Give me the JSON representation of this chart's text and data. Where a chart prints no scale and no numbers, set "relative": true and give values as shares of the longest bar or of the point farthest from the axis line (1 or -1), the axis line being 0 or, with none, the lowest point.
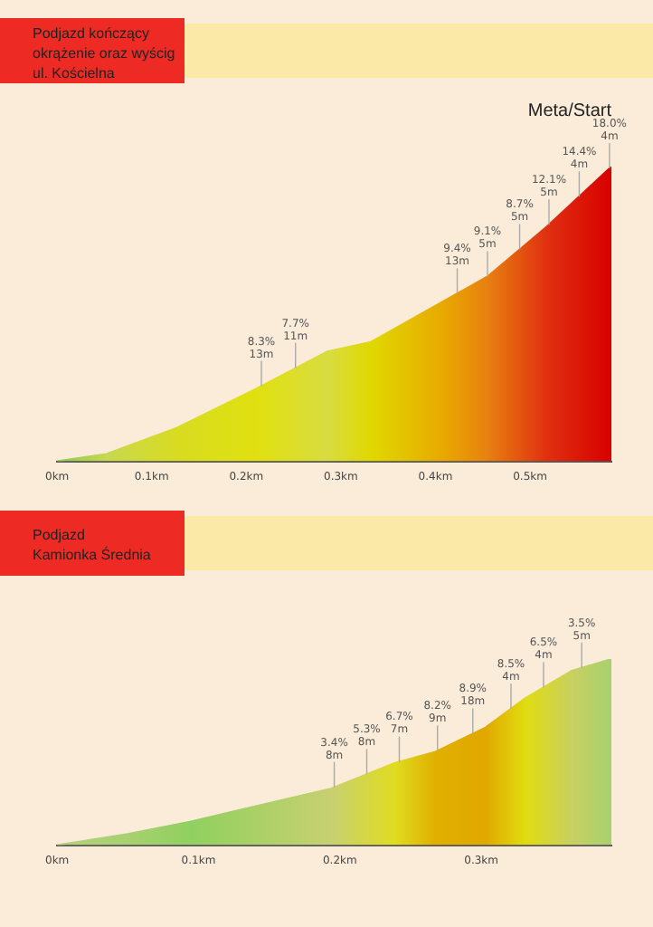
{
  "chart_data": [
    {
      "type": "area",
      "title": "Podjazd kończący\nokrążenie oraz wyścig\nul. Kościelna",
      "relative": true,
      "tick_labels": "x",
      "x": [
        0,
        0.052,
        0.127,
        0.211,
        0.286,
        0.332,
        0.409,
        0.455,
        0.518,
        0.586
      ],
      "xlim": [
        0,
        0.586
      ],
      "xticks": [
        {
          "value": 0,
          "label": "0km"
        },
        {
          "value": 0.1,
          "label": "0.1km"
        },
        {
          "value": 0.2,
          "label": "0.2km"
        },
        {
          "value": 0.3,
          "label": "0.3km"
        },
        {
          "value": 0.4,
          "label": "0.4km"
        },
        {
          "value": 0.5,
          "label": "0.5km"
        }
      ],
      "series": [
        {
          "values": [
            0,
            0.025,
            0.114,
            0.247,
            0.373,
            0.405,
            0.544,
            0.627,
            0.797,
            1.0
          ],
          "colors": [
            "#8cc850",
            "#c8d850",
            "#d8dc20",
            "#e0e010",
            "#d8dc40",
            "#e0d800",
            "#e8a800",
            "#e88010",
            "#e03010",
            "#d80000"
          ]
        }
      ],
      "annotations": [
        {
          "text": "8.3%\n13m",
          "x": 0.216,
          "y": 0.255
        },
        {
          "text": "7.7%\n11m",
          "x": 0.252,
          "y": 0.316
        },
        {
          "text": "9.4%\n13m",
          "x": 0.423,
          "y": 0.569
        },
        {
          "text": "9.1%\n5m",
          "x": 0.455,
          "y": 0.627
        },
        {
          "text": "8.7%\n5m",
          "x": 0.489,
          "y": 0.719
        },
        {
          "text": "12.1%\n5m",
          "x": 0.52,
          "y": 0.803
        },
        {
          "text": "14.4%\n4m",
          "x": 0.552,
          "y": 0.898
        },
        {
          "text": "18.0%\n4m",
          "x": 0.584,
          "y": 0.994
        },
        "Meta/Start"
      ]
    },
    {
      "type": "area",
      "title": "Podjazd\nKamionka Średnia",
      "relative": true,
      "tick_labels": "x",
      "x": [
        0,
        0.05,
        0.094,
        0.194,
        0.239,
        0.267,
        0.303,
        0.331,
        0.364,
        0.392
      ],
      "xlim": [
        0,
        0.392
      ],
      "xticks": [
        {
          "value": 0,
          "label": "0km"
        },
        {
          "value": 0.1,
          "label": "0.1km"
        },
        {
          "value": 0.2,
          "label": "0.2km"
        },
        {
          "value": 0.3,
          "label": "0.3km"
        }
      ],
      "series": [
        {
          "values": [
            0,
            0.06,
            0.126,
            0.305,
            0.442,
            0.5,
            0.632,
            0.789,
            0.937,
            1.0
          ],
          "colors": [
            "#b8d080",
            "#a8d070",
            "#90d060",
            "#c8d070",
            "#e0dc20",
            "#e0b000",
            "#e0a800",
            "#e0dc10",
            "#c8d060",
            "#a8d070"
          ]
        }
      ],
      "annotations": [
        {
          "text": "3.4%\n8m",
          "x": 0.196,
          "y": 0.311
        },
        {
          "text": "5.3%\n8m",
          "x": 0.219,
          "y": 0.381
        },
        {
          "text": "6.7%\n7m",
          "x": 0.242,
          "y": 0.448
        },
        {
          "text": "8.2%\n9m",
          "x": 0.269,
          "y": 0.507
        },
        {
          "text": "8.9%\n18m",
          "x": 0.294,
          "y": 0.599
        },
        {
          "text": "8.5%\n4m",
          "x": 0.321,
          "y": 0.733
        },
        {
          "text": "6.5%\n4m",
          "x": 0.344,
          "y": 0.847
        },
        {
          "text": "3.5%\n5m",
          "x": 0.371,
          "y": 0.953
        }
      ]
    }
  ]
}
